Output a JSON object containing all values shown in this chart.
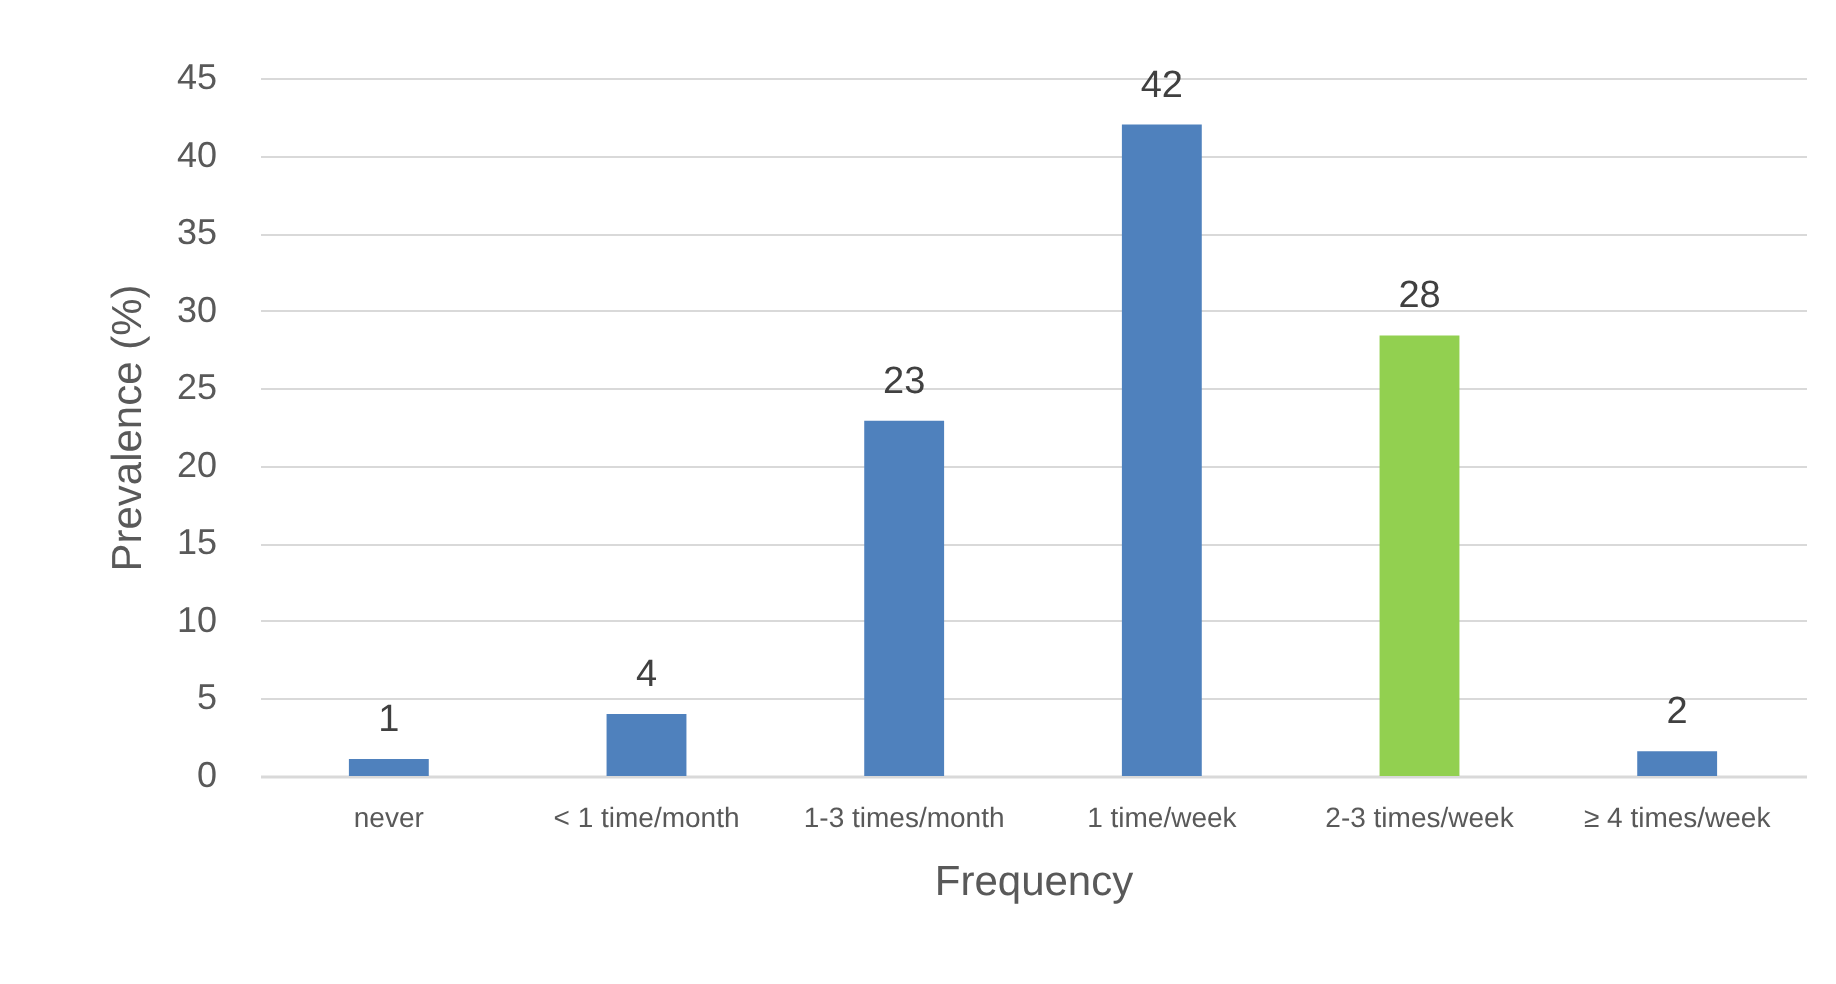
{
  "chart_data": {
    "type": "bar",
    "xlabel": "Frequency",
    "ylabel": "Prevalence (%)",
    "categories": [
      "never",
      "< 1 time/month",
      "1-3 times/month",
      "1 time/week",
      "2-3 times/week",
      "≥ 4 times/week"
    ],
    "values": [
      1.1,
      4,
      22.9,
      42,
      28.4,
      1.6
    ],
    "colors": [
      "#4f81bd",
      "#4f81bd",
      "#4f81bd",
      "#4f81bd",
      "#92d050",
      "#4f81bd"
    ],
    "value_labels": [
      "1",
      "4",
      "23",
      "42",
      "28",
      "2"
    ],
    "ylim": [
      0,
      45
    ],
    "yticks": [
      0,
      5,
      10,
      15,
      20,
      25,
      30,
      35,
      40,
      45
    ],
    "grid": "y"
  }
}
